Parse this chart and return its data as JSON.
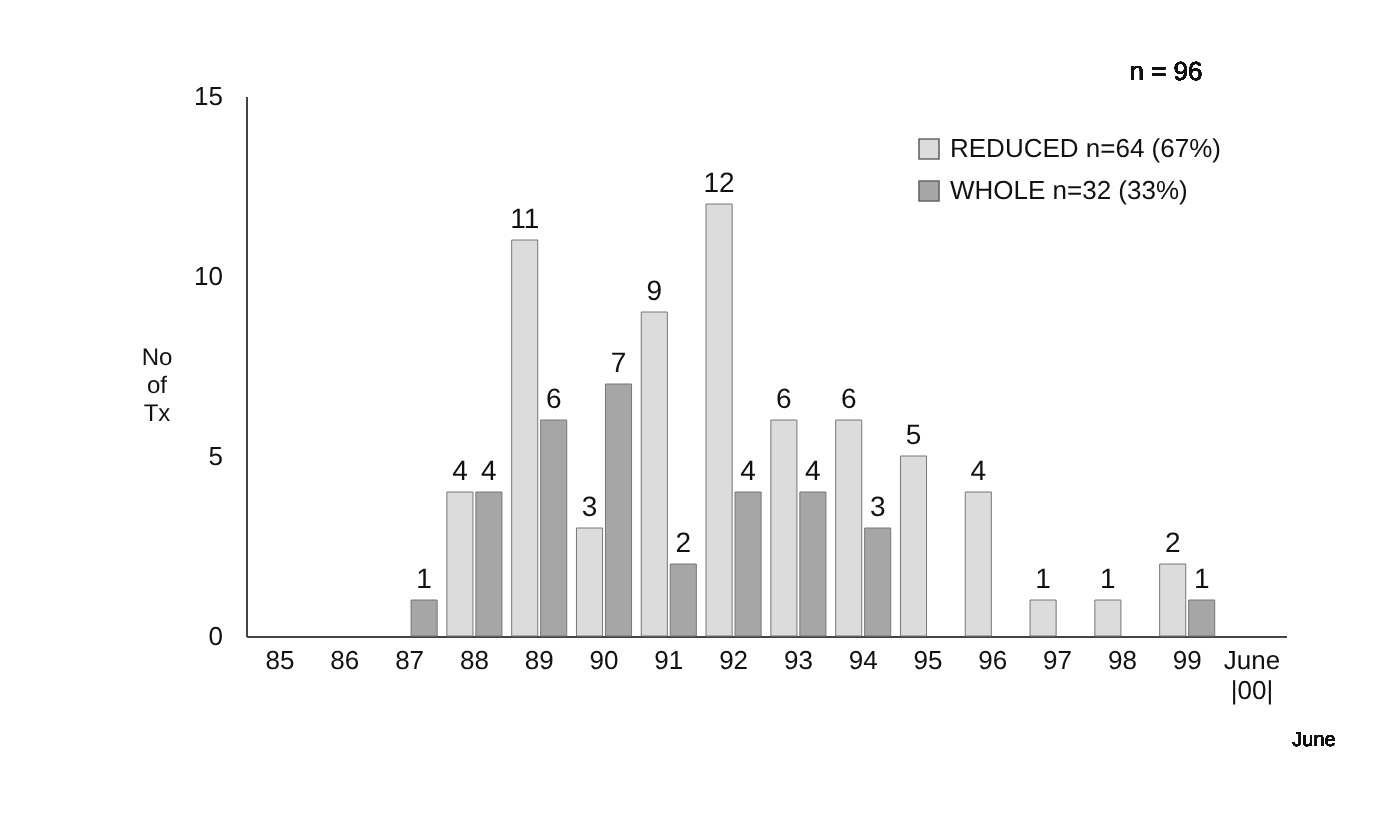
{
  "chart_data": {
    "type": "bar",
    "ylabel": "No of Tx",
    "categories": [
      "85",
      "86",
      "87",
      "88",
      "89",
      "90",
      "91",
      "92",
      "93",
      "94",
      "95",
      "96",
      "97",
      "98",
      "99",
      "June |00|"
    ],
    "series": [
      {
        "name": "REDUCED n=64 (67%)",
        "color": "#dcdcdc",
        "values": [
          null,
          null,
          null,
          4,
          11,
          3,
          9,
          12,
          6,
          6,
          5,
          4,
          1,
          1,
          2,
          null
        ]
      },
      {
        "name": "WHOLE n=32 (33%)",
        "color": "#a6a6a6",
        "values": [
          null,
          null,
          1,
          4,
          6,
          7,
          2,
          4,
          4,
          3,
          null,
          null,
          null,
          null,
          1,
          null
        ]
      }
    ],
    "ylim": [
      0,
      15
    ],
    "yticks": [
      0,
      5,
      10,
      15
    ],
    "grid": false,
    "legend": "top right",
    "data_labels": true,
    "annotations": [
      "n = 96",
      "June"
    ]
  }
}
